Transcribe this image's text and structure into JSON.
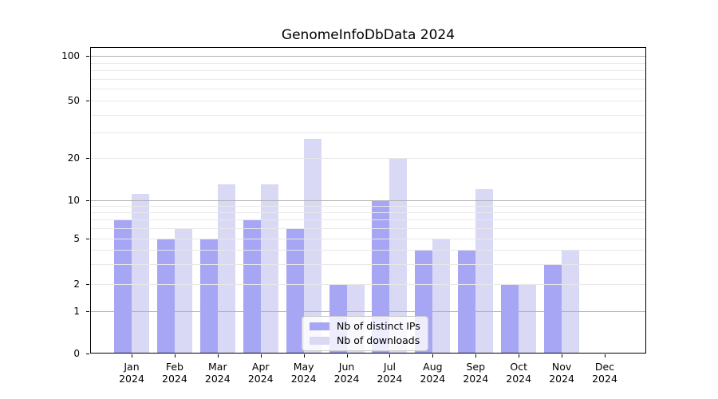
{
  "chart_data": {
    "type": "bar",
    "title": "GenomeInfoDbData 2024",
    "categories": [
      "Jan 2024",
      "Feb 2024",
      "Mar 2024",
      "Apr 2024",
      "May 2024",
      "Jun 2024",
      "Jul 2024",
      "Aug 2024",
      "Sep 2024",
      "Oct 2024",
      "Nov 2024",
      "Dec 2024"
    ],
    "series": [
      {
        "name": "Nb of distinct IPs",
        "color": "#a6a6f4",
        "values": [
          7,
          5,
          5,
          7,
          6,
          2,
          10,
          4,
          4,
          2,
          3,
          0
        ]
      },
      {
        "name": "Nb of downloads",
        "color": "#d9d9f6",
        "values": [
          11,
          6,
          13,
          13,
          27,
          2,
          20,
          5,
          12,
          2,
          4,
          0
        ]
      }
    ],
    "xlabel": "",
    "ylabel": "",
    "ylim": [
      0,
      100
    ],
    "y_ticks": [
      0,
      1,
      2,
      5,
      10,
      20,
      50,
      100
    ],
    "y_scale": "log-like with zero baseline",
    "grid": "horizontal major at 1,10,100 and minor at 2-9,20-90, drawn over bars",
    "legend_position": "lower center inside plot"
  },
  "colors": {
    "axis": "#000000",
    "grid_major": "#b0b0b0",
    "grid_minor": "#e8e8e8",
    "background": "#ffffff"
  }
}
